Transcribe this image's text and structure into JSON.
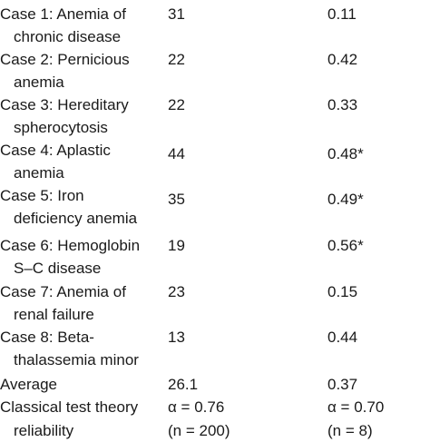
{
  "rows": [
    {
      "label": "Case 1: Anemia of",
      "cont": "chronic disease",
      "v1": "31",
      "v2": "0.11"
    },
    {
      "label": "Case 2: Pernicious",
      "cont": "anemia",
      "v1": "22",
      "v2": "0.42"
    },
    {
      "label": "Case 3: Hereditary",
      "cont": "spherocytosis",
      "v1": "22",
      "v2": "0.33"
    },
    {
      "label": "Case 4: Aplastic",
      "cont": "anemia",
      "v1": "44",
      "v2": "0.48*"
    },
    {
      "label": "Case 5: Iron",
      "cont": "deficiency anemia",
      "v1": "35",
      "v2": "0.49*"
    },
    {
      "label": "Case 6: Hemoglobin",
      "cont": "S–C disease",
      "v1": "19",
      "v2": "0.56*"
    },
    {
      "label": "Case 7: Anemia of",
      "cont": "renal failure",
      "v1": "23",
      "v2": "0.15"
    },
    {
      "label": "Case 8: Beta-",
      "cont": "thalassemia minor",
      "v1": "13",
      "v2": "0.44"
    }
  ],
  "average": {
    "label": "Average",
    "v1": "26.1",
    "v2": "0.37"
  },
  "classical": {
    "label": "Classical test theory",
    "cont": "reliability",
    "v1": "α = 0.76",
    "v2": "α = 0.70",
    "v1b": "(n = 200)",
    "v2b": "(n = 8)"
  }
}
